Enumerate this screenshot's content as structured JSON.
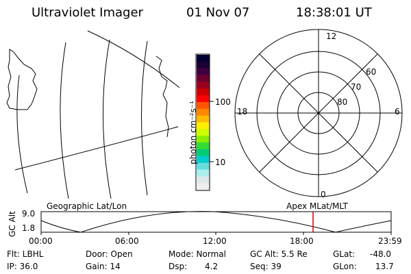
{
  "header": {
    "title": "Ultraviolet Imager",
    "date": "01 Nov 07",
    "time": "18:38:01 UT"
  },
  "colorbar": {
    "unit_label": "photon cm⁻²s⁻¹",
    "tick_100": "100",
    "tick_10": "10",
    "colors": [
      "#000033",
      "#1a0033",
      "#400040",
      "#6b0030",
      "#990020",
      "#cc0000",
      "#ff0000",
      "#ff5500",
      "#ff8800",
      "#ffbb00",
      "#ffee00",
      "#ccff00",
      "#88ee00",
      "#33dd33",
      "#00cc77",
      "#00cccc",
      "#66dddd",
      "#aaeeee",
      "#dde8e8",
      "#eeeeee"
    ]
  },
  "polar": {
    "mlt_12": "12",
    "mlt_18": "18",
    "mlt_6": "6",
    "mlt_0": "0",
    "lat_60": "60",
    "lat_70": "70",
    "lat_80": "80"
  },
  "timeline": {
    "left_title": "Geographic Lat/Lon",
    "right_title": "Apex MLat/MLT",
    "axis_name": "GC Alt",
    "y_top": "9.0",
    "y_bottom": "1.8",
    "x_ticks": [
      "00:00",
      "06:00",
      "12:00",
      "18:00",
      "23:59"
    ],
    "marker_time": "18:38",
    "marker_color": "#cc0000"
  },
  "status": {
    "flt": "Flt: LBHL",
    "ip": "IP: 36.0",
    "door": "Door: Open",
    "gain": "Gain: 14",
    "mode": "Mode: Normal",
    "dsp_label": "Dsp:",
    "dsp_value": "4.2",
    "gcalt": "GC Alt: 5.5 Re",
    "seq": "Seq: 39",
    "glat_label": "GLat:",
    "glat_value": "-48.0",
    "glon_label": "GLon:",
    "glon_value": "13.7"
  }
}
